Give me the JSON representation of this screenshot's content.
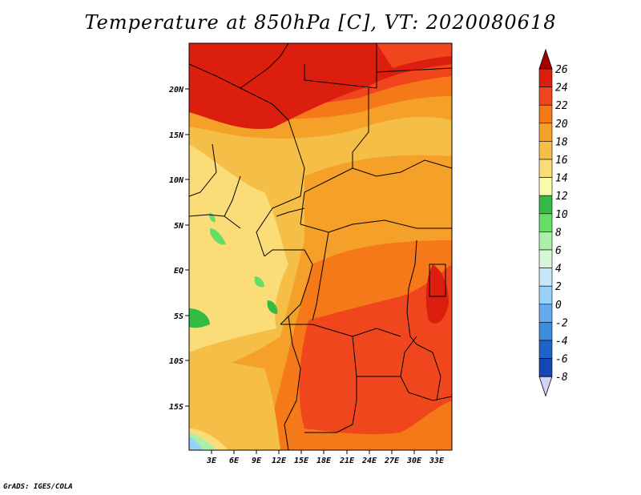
{
  "title": "Temperature at 850hPa [C], VT: 2020080618",
  "credit": "GrADS: IGES/COLA",
  "map": {
    "lat_labels": [
      "20N",
      "15N",
      "10N",
      "5N",
      "EQ",
      "5S",
      "10S",
      "15S"
    ],
    "lon_labels": [
      "3E",
      "6E",
      "9E",
      "12E",
      "15E",
      "18E",
      "21E",
      "24E",
      "27E",
      "30E",
      "33E"
    ]
  },
  "colorbar": {
    "labels": [
      "26",
      "24",
      "22",
      "20",
      "18",
      "16",
      "14",
      "12",
      "10",
      "8",
      "6",
      "4",
      "2",
      "0",
      "-2",
      "-4",
      "-6",
      "-8"
    ],
    "colors": [
      "#a50000",
      "#dc1e0f",
      "#f0461e",
      "#f57819",
      "#f5a028",
      "#f5be46",
      "#fadc78",
      "#fafaaa",
      "#33bb44",
      "#66dd66",
      "#aaf0aa",
      "#d7f5d7",
      "#c8e6fa",
      "#96d2fa",
      "#64aaf0",
      "#3c8cdc",
      "#1e64c8",
      "#1446b4",
      "#0a2896",
      "#00146e",
      "#d2d2fa"
    ]
  }
}
